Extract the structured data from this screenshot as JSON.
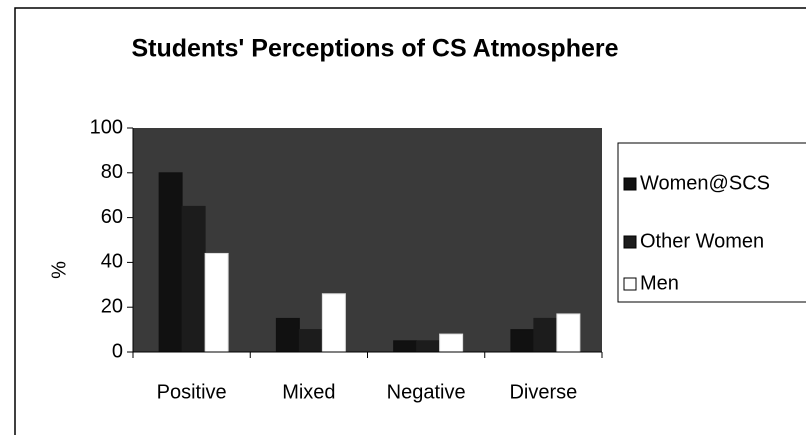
{
  "chart_data": {
    "type": "bar",
    "title": "Students' Perceptions of CS Atmosphere",
    "y_label": "%",
    "categories": [
      "Positive",
      "Mixed",
      "Negative",
      "Diverse"
    ],
    "series": [
      {
        "name": "Women@SCS",
        "color": "#111111",
        "values": [
          80,
          15,
          5,
          10
        ]
      },
      {
        "name": "Other Women",
        "color": "#1c1c1c",
        "values": [
          65,
          10,
          5,
          15
        ]
      },
      {
        "name": "Men",
        "color": "#ffffff",
        "values": [
          44,
          26,
          8,
          17
        ]
      }
    ],
    "ylim": [
      0,
      100
    ],
    "yticks": [
      0,
      20,
      40,
      60,
      80,
      100
    ],
    "legend": "right"
  }
}
